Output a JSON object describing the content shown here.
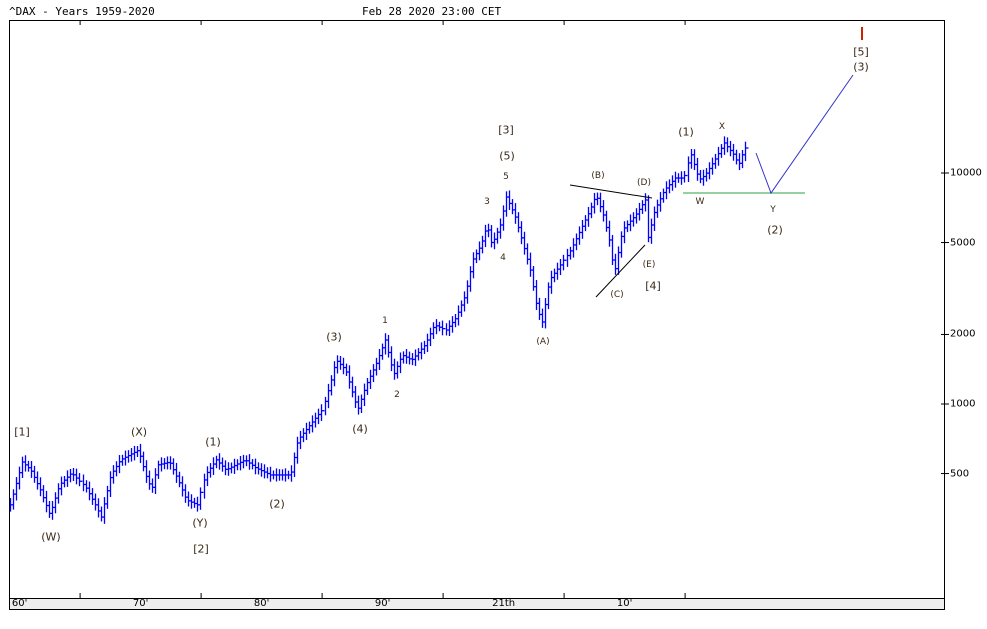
{
  "header": {
    "title": "^DAX - Years 1959-2020",
    "timestamp": "Feb 28 2020 23:00 CET"
  },
  "chart_data": {
    "type": "bar",
    "style": "ohlc",
    "title": "^DAX - Years 1959-2020",
    "y_scale": "log",
    "y_ticks": [
      500,
      1000,
      2000,
      5000,
      10000
    ],
    "y_tick_labels": [
      "500",
      "1000",
      "2000",
      "5000",
      "10000"
    ],
    "x_tick_labels": [
      "60'",
      "70'",
      "80'",
      "90'",
      "21th",
      "10'"
    ],
    "series_color": "#0000ff",
    "grid": false,
    "points": [
      [
        1959.2,
        366
      ],
      [
        1960.2,
        561
      ],
      [
        1960.9,
        518
      ],
      [
        1961.7,
        425
      ],
      [
        1962.5,
        331
      ],
      [
        1963.3,
        446
      ],
      [
        1964.3,
        503
      ],
      [
        1965.4,
        437
      ],
      [
        1966.2,
        366
      ],
      [
        1966.7,
        324
      ],
      [
        1967.5,
        493
      ],
      [
        1968.3,
        573
      ],
      [
        1969.8,
        632
      ],
      [
        1970.4,
        493
      ],
      [
        1970.9,
        425
      ],
      [
        1971.4,
        545
      ],
      [
        1972.4,
        561
      ],
      [
        1973.1,
        469
      ],
      [
        1973.8,
        384
      ],
      [
        1974.7,
        366
      ],
      [
        1975.3,
        493
      ],
      [
        1976.2,
        573
      ],
      [
        1977.0,
        518
      ],
      [
        1978.6,
        573
      ],
      [
        1979.5,
        528
      ],
      [
        1980.7,
        493
      ],
      [
        1982.4,
        493
      ],
      [
        1983.0,
        698
      ],
      [
        1984.0,
        811
      ],
      [
        1985.0,
        942
      ],
      [
        1985.7,
        1271
      ],
      [
        1986.1,
        1549
      ],
      [
        1986.9,
        1403
      ],
      [
        1987.9,
        942
      ],
      [
        1988.6,
        1208
      ],
      [
        1989.4,
        1476
      ],
      [
        1990.2,
        1893
      ],
      [
        1990.9,
        1336
      ],
      [
        1991.6,
        1630
      ],
      [
        1992.4,
        1549
      ],
      [
        1993.5,
        1800
      ],
      [
        1994.3,
        2198
      ],
      [
        1995.2,
        2090
      ],
      [
        1996.0,
        2357
      ],
      [
        1996.8,
        2965
      ],
      [
        1997.4,
        4200
      ],
      [
        1998.1,
        4880
      ],
      [
        1998.6,
        5955
      ],
      [
        1999.0,
        4880
      ],
      [
        1999.7,
        5955
      ],
      [
        2000.2,
        7870
      ],
      [
        2000.9,
        6580
      ],
      [
        2001.5,
        5130
      ],
      [
        2002.2,
        3800
      ],
      [
        2002.8,
        2553
      ],
      [
        2003.2,
        2265
      ],
      [
        2003.8,
        3440
      ],
      [
        2004.7,
        4000
      ],
      [
        2005.5,
        4645
      ],
      [
        2006.3,
        5665
      ],
      [
        2007.1,
        6915
      ],
      [
        2007.6,
        8035
      ],
      [
        2008.2,
        6580
      ],
      [
        2008.8,
        4880
      ],
      [
        2009.1,
        3615
      ],
      [
        2009.8,
        5665
      ],
      [
        2010.9,
        6580
      ],
      [
        2011.7,
        7640
      ],
      [
        2011.9,
        5130
      ],
      [
        2012.5,
        6915
      ],
      [
        2013.3,
        8440
      ],
      [
        2014.2,
        9510
      ],
      [
        2014.9,
        9510
      ],
      [
        2015.4,
        12220
      ],
      [
        2016.1,
        9330
      ],
      [
        2016.6,
        9800
      ],
      [
        2017.4,
        11380
      ],
      [
        2018.2,
        13490
      ],
      [
        2019.0,
        11970
      ],
      [
        2019.4,
        10830
      ],
      [
        2019.9,
        12830
      ],
      [
        2020.1,
        12830
      ]
    ],
    "annotations": {
      "wave_labels": [
        "[1]",
        "(W)",
        "(X)",
        "(1)",
        "(Y)",
        "[2]",
        "(2)",
        "(3)",
        "(4)",
        "1",
        "2",
        "3",
        "4",
        "5",
        "(5)",
        "[3]",
        "(A)",
        "(B)",
        "(C)",
        "(D)",
        "(E)",
        "[4]",
        "(1)",
        "X",
        "W",
        "Y",
        "(2)",
        "[5]",
        "(3)"
      ],
      "label_color": "#3a2a18",
      "trendline_color": "#000000",
      "support_line_color": "#2ea043",
      "projection_color": "#3333cc",
      "target_marker_color": "#cc2200"
    }
  }
}
